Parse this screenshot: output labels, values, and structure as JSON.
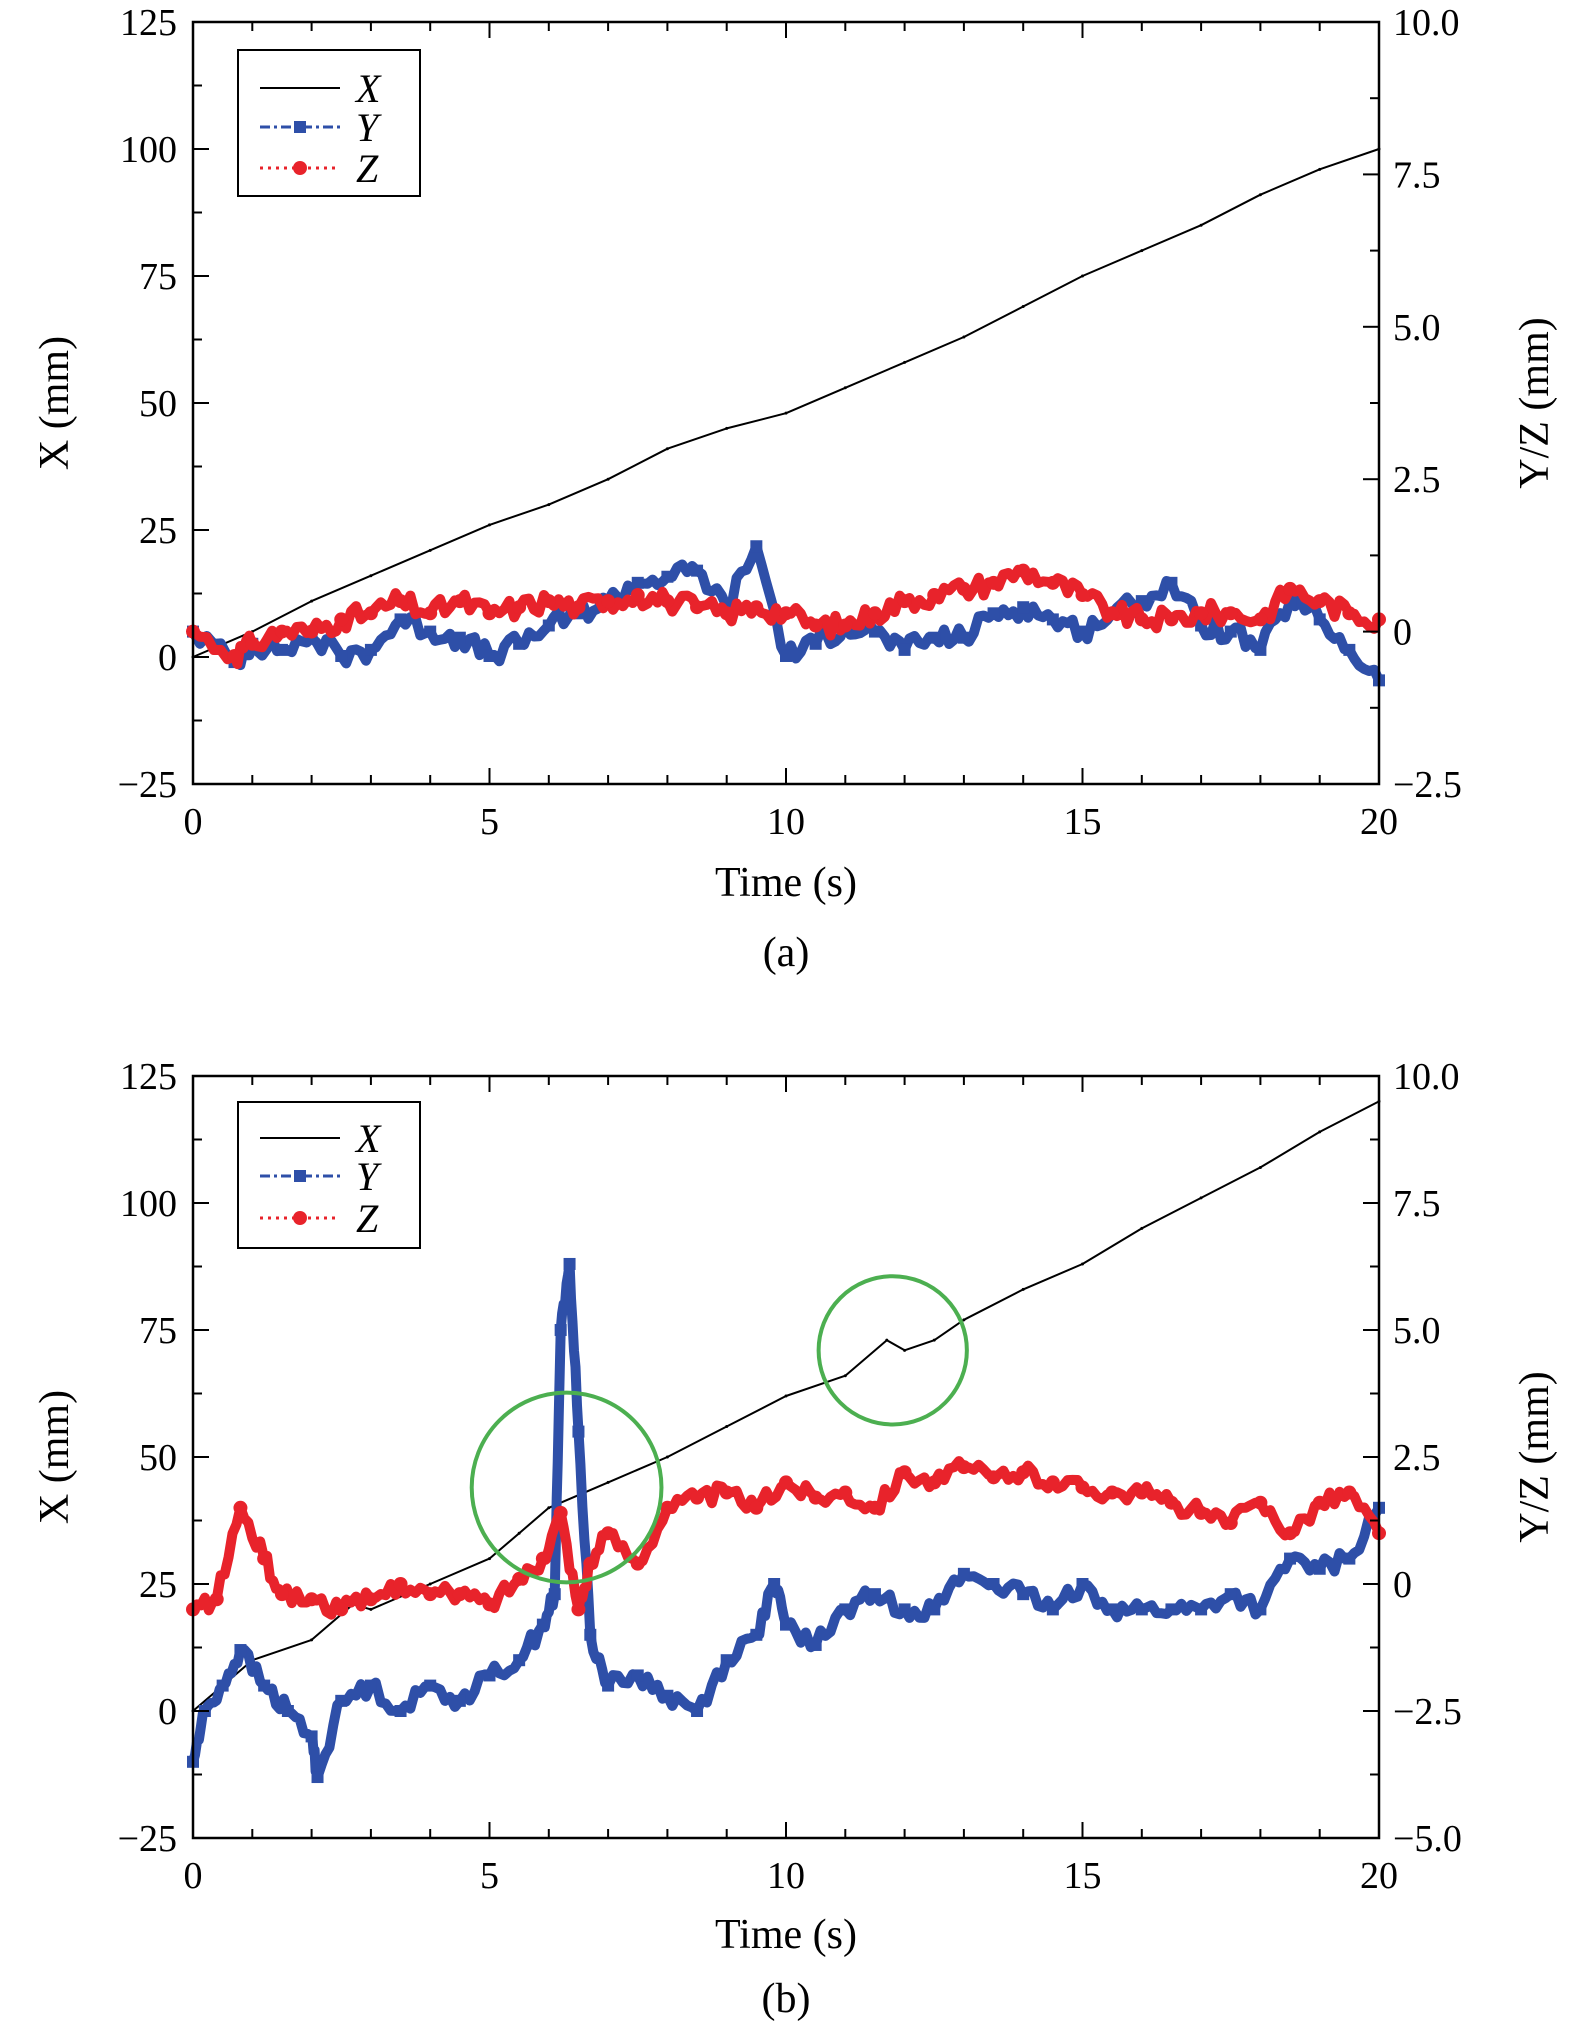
{
  "chart_data": [
    {
      "type": "line",
      "panel": "a",
      "caption": "(a)",
      "xlabel": "Time (s)",
      "ylabel_left": "X (mm)",
      "ylabel_right": "Y/Z (mm)",
      "xlim": [
        0,
        20
      ],
      "ylim_left": [
        -25,
        125
      ],
      "ylim_right": [
        -2.5,
        10.0
      ],
      "xticks": [
        "0",
        "5",
        "10",
        "15",
        "20"
      ],
      "yticks_left": [
        "−25",
        "0",
        "25",
        "50",
        "75",
        "100",
        "125"
      ],
      "yticks_right": [
        "−2.5",
        "0",
        "2.5",
        "5.0",
        "7.5",
        "10.0"
      ],
      "legend": {
        "position": "top-left",
        "entries": [
          "X",
          "Y",
          "Z"
        ]
      },
      "colors": {
        "X": "#000000",
        "Y": "#2e4fa8",
        "Z": "#e8232b"
      },
      "series": [
        {
          "name": "X",
          "axis": "left",
          "style": "solid",
          "x": [
            0,
            1,
            2,
            3,
            4,
            5,
            6,
            7,
            8,
            9,
            10,
            11,
            12,
            13,
            14,
            15,
            16,
            17,
            18,
            19,
            20
          ],
          "y": [
            0,
            5,
            11,
            16,
            21,
            26,
            30,
            35,
            41,
            45,
            48,
            53,
            58,
            63,
            69,
            75,
            80,
            85,
            91,
            96,
            100
          ]
        },
        {
          "name": "Y",
          "axis": "right",
          "style": "dash-dot-square",
          "x": [
            0,
            0.7,
            1,
            1.5,
            2,
            2.5,
            3,
            3.5,
            4,
            4.5,
            5,
            5.5,
            6,
            6.5,
            7,
            7.5,
            8,
            8.5,
            9,
            9.5,
            10,
            10.5,
            11,
            11.5,
            12,
            12.5,
            13,
            13.5,
            14,
            14.5,
            15,
            15.5,
            16,
            16.5,
            17,
            17.5,
            18,
            18.5,
            19,
            19.5,
            20
          ],
          "y": [
            0,
            -0.5,
            -0.2,
            -0.3,
            -0.1,
            -0.4,
            -0.3,
            0.2,
            0,
            -0.1,
            -0.4,
            -0.2,
            0.1,
            0.3,
            0.5,
            0.8,
            0.9,
            1.0,
            0.4,
            1.4,
            -0.4,
            -0.2,
            0.1,
            0,
            -0.3,
            -0.1,
            -0.1,
            0.3,
            0.4,
            0.2,
            0,
            0.3,
            0.5,
            0.8,
            0.1,
            0,
            -0.3,
            0.5,
            0.2,
            -0.3,
            -0.8
          ]
        },
        {
          "name": "Z",
          "axis": "right",
          "style": "dotted-dot",
          "x": [
            0,
            0.7,
            1,
            1.5,
            2,
            2.5,
            3,
            3.5,
            4,
            4.5,
            5,
            5.5,
            6,
            6.5,
            7,
            7.5,
            8,
            8.5,
            9,
            9.5,
            10,
            10.5,
            11,
            11.5,
            12,
            12.5,
            13,
            13.5,
            14,
            14.5,
            15,
            15.5,
            16,
            16.5,
            17,
            17.5,
            18,
            18.5,
            19,
            19.5,
            20
          ],
          "y": [
            0,
            -0.4,
            -0.2,
            0,
            0,
            0.2,
            0.3,
            0.5,
            0.3,
            0.5,
            0.3,
            0.4,
            0.5,
            0.4,
            0.5,
            0.6,
            0.5,
            0.4,
            0.3,
            0.4,
            0.3,
            0.1,
            0.1,
            0.3,
            0.5,
            0.6,
            0.7,
            0.8,
            1.0,
            0.8,
            0.6,
            0.3,
            0.2,
            0.2,
            0.3,
            0.3,
            0.2,
            0.7,
            0.5,
            0.3,
            0.2
          ]
        }
      ]
    },
    {
      "type": "line",
      "panel": "b",
      "caption": "(b)",
      "xlabel": "Time (s)",
      "ylabel_left": "X (mm)",
      "ylabel_right": "Y/Z (mm)",
      "xlim": [
        0,
        20
      ],
      "ylim_left": [
        -25,
        125
      ],
      "ylim_right": [
        -5.0,
        10.0
      ],
      "xticks": [
        "0",
        "5",
        "10",
        "15",
        "20"
      ],
      "yticks_left": [
        "−25",
        "0",
        "25",
        "50",
        "75",
        "100",
        "125"
      ],
      "yticks_right": [
        "−5.0",
        "−2.5",
        "0",
        "2.5",
        "5.0",
        "7.5",
        "10.0"
      ],
      "legend": {
        "position": "top-left",
        "entries": [
          "X",
          "Y",
          "Z"
        ]
      },
      "colors": {
        "X": "#000000",
        "Y": "#2e4fa8",
        "Z": "#e8232b",
        "annotation": "#4caf50"
      },
      "annotations": [
        {
          "shape": "circle",
          "center_x": 6.3,
          "center_y_left": 44,
          "radius_x_units": 1.6
        },
        {
          "shape": "circle",
          "center_x": 11.8,
          "center_y_left": 71,
          "radius_x_units": 1.25
        }
      ],
      "series": [
        {
          "name": "X",
          "axis": "left",
          "style": "solid",
          "x": [
            0,
            1,
            2,
            2.7,
            3,
            4,
            5,
            5.5,
            6,
            7,
            8,
            9,
            10,
            11,
            11.7,
            12,
            12.5,
            13,
            14,
            15,
            16,
            17,
            18,
            19,
            20
          ],
          "y": [
            0,
            10,
            14,
            21,
            20,
            25,
            30,
            35,
            40,
            45,
            50,
            56,
            62,
            66,
            73,
            71,
            73,
            77,
            83,
            88,
            95,
            101,
            107,
            114,
            120
          ]
        },
        {
          "name": "Y",
          "axis": "right",
          "style": "dash-dot-square",
          "x": [
            0,
            0.2,
            0.5,
            0.8,
            1.2,
            1.6,
            2.0,
            2.1,
            2.5,
            3,
            3.5,
            4,
            4.5,
            5,
            5.5,
            5.9,
            6.1,
            6.2,
            6.35,
            6.5,
            6.7,
            7,
            7.5,
            8,
            8.5,
            9,
            9.5,
            9.8,
            10,
            10.5,
            11,
            11.5,
            12,
            12.5,
            13,
            13.5,
            14,
            14.5,
            15,
            15.5,
            16,
            16.5,
            17,
            17.5,
            18,
            18.5,
            19,
            19.5,
            20
          ],
          "y": [
            -3.5,
            -2.5,
            -2.0,
            -1.3,
            -2.0,
            -2.5,
            -3.0,
            -3.8,
            -2.3,
            -2.0,
            -2.5,
            -2.0,
            -2.3,
            -1.8,
            -1.5,
            -0.8,
            -0.2,
            5.0,
            6.3,
            3.0,
            -1.0,
            -2.0,
            -1.8,
            -2.2,
            -2.5,
            -1.5,
            -1.0,
            0,
            -0.8,
            -1.2,
            -0.5,
            -0.2,
            -0.5,
            -0.5,
            0.2,
            0,
            -0.2,
            -0.5,
            0,
            -0.5,
            -0.5,
            -0.5,
            -0.5,
            -0.2,
            -0.5,
            0.5,
            0.3,
            0.5,
            1.5
          ]
        },
        {
          "name": "Z",
          "axis": "right",
          "style": "dotted-dot",
          "x": [
            0,
            0.4,
            0.8,
            1.2,
            1.5,
            2,
            2.5,
            3,
            3.5,
            4,
            4.5,
            5,
            5.5,
            5.9,
            6.2,
            6.5,
            6.7,
            7,
            7.5,
            8,
            8.5,
            9,
            9.5,
            10,
            10.5,
            11,
            11.5,
            12,
            12.5,
            13,
            13.5,
            14,
            14.5,
            15,
            15.5,
            16,
            16.5,
            17,
            17.5,
            18,
            18.5,
            19,
            19.5,
            20
          ],
          "y": [
            -0.5,
            -0.3,
            1.5,
            0.5,
            -0.2,
            -0.3,
            -0.5,
            -0.3,
            0,
            -0.2,
            -0.2,
            -0.4,
            0.1,
            0.5,
            1.4,
            -0.5,
            0.4,
            1.0,
            0.4,
            1.5,
            1.7,
            1.8,
            1.5,
            2.0,
            1.7,
            1.8,
            1.5,
            2.2,
            2.0,
            2.3,
            2.1,
            2.2,
            2.0,
            1.9,
            1.8,
            1.8,
            1.6,
            1.4,
            1.2,
            1.6,
            1.0,
            1.6,
            1.8,
            1.0
          ]
        }
      ]
    }
  ]
}
